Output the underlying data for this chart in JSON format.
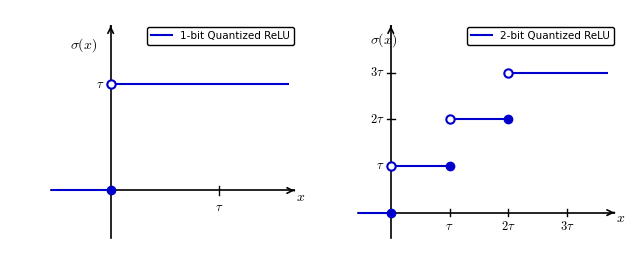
{
  "line_color": "#0000CC",
  "background_color": "#ffffff",
  "left_ylabel": "$\\sigma(x)$",
  "right_ylabel": "$\\sigma(x)$",
  "xlabel": "$x$",
  "legend_left": "1-bit Quantized ReLU",
  "legend_right": "2-bit Quantized ReLU",
  "tau_label": "$\\tau$",
  "tau2_label": "$2\\tau$",
  "tau3_label": "$3\\tau$",
  "lw": 1.5,
  "ms_filled": 6,
  "ms_open": 6
}
